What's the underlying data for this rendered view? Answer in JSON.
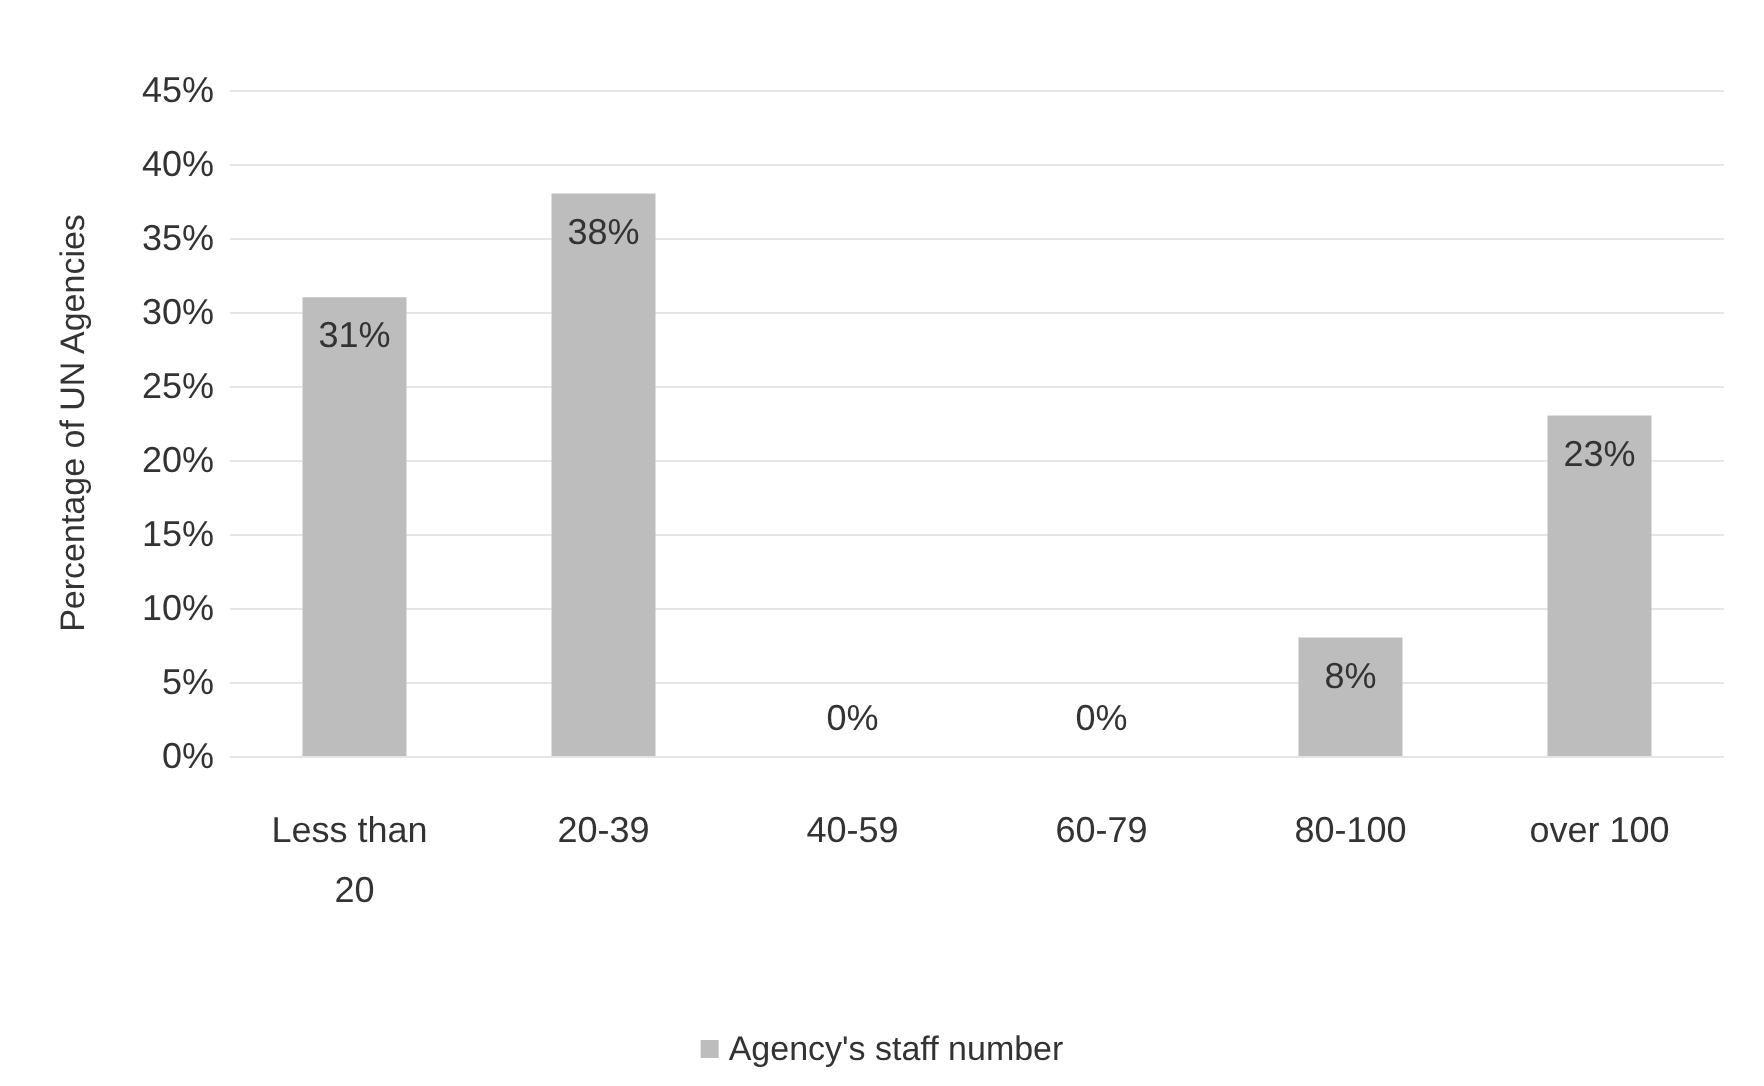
{
  "chart_data": {
    "type": "bar",
    "ylabel": "Percentage of UN Agencies",
    "categories": [
      "Less than 20",
      "20-39",
      "40-59",
      "60-79",
      "80-100",
      "over 100"
    ],
    "series": [
      {
        "name": "Agency's staff number",
        "color": "#bdbdbd",
        "values": [
          31,
          38,
          0,
          0,
          8,
          23
        ],
        "value_labels": [
          "31%",
          "38%",
          "0%",
          "0%",
          "8%",
          "23%"
        ]
      }
    ],
    "ylim": [
      0,
      45
    ],
    "yticks": [
      {
        "value": 0,
        "label": "0%"
      },
      {
        "value": 5,
        "label": "5%"
      },
      {
        "value": 10,
        "label": "10%"
      },
      {
        "value": 15,
        "label": "15%"
      },
      {
        "value": 20,
        "label": "20%"
      },
      {
        "value": 25,
        "label": "25%"
      },
      {
        "value": 30,
        "label": "30%"
      },
      {
        "value": 35,
        "label": "35%"
      },
      {
        "value": 40,
        "label": "40%"
      },
      {
        "value": 45,
        "label": "45%"
      }
    ],
    "grid": true,
    "legend": "bottom"
  }
}
